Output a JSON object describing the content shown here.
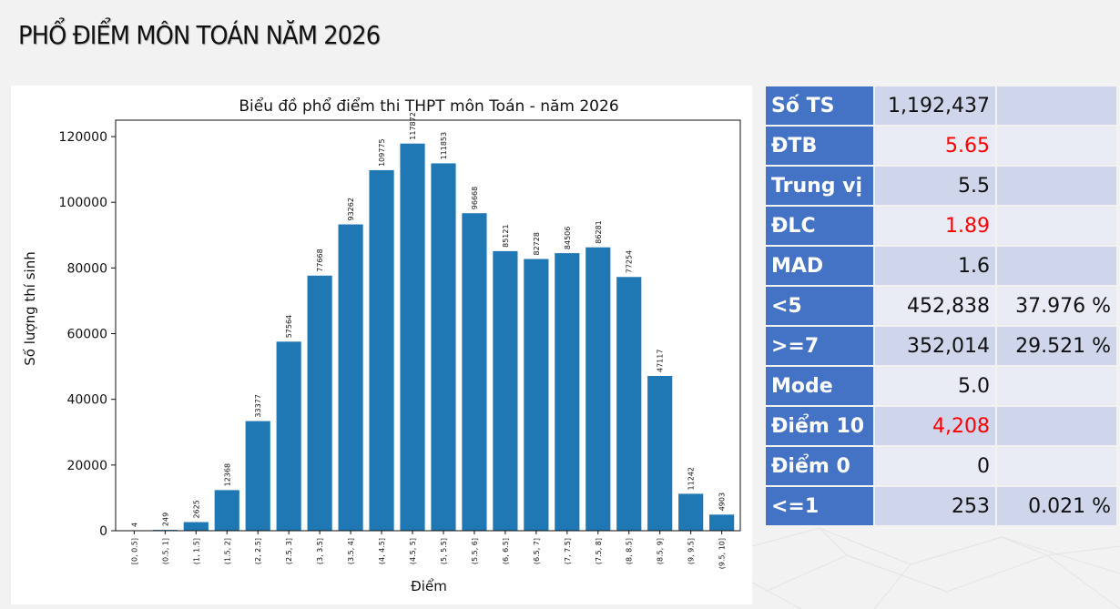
{
  "page": {
    "title": "PHỔ ĐIỂM MÔN TOÁN NĂM 2026"
  },
  "colors": {
    "bar": "#1f77b4",
    "table_header": "#4472c4",
    "row_dark": "#cfd5ea",
    "row_light": "#e9ebf5",
    "highlight": "#ff0000"
  },
  "chart_data": {
    "type": "bar",
    "title": "Biểu đồ phổ điểm thi THPT môn Toán - năm 2026",
    "xlabel": "Điểm",
    "ylabel": "Số lượng thí sinh",
    "ylim": [
      0,
      125000
    ],
    "yticks": [
      0,
      20000,
      40000,
      60000,
      80000,
      100000,
      120000
    ],
    "grid": false,
    "categories": [
      "[0, 0.5]",
      "(0.5, 1]",
      "(1, 1.5]",
      "(1.5, 2]",
      "(2, 2.5]",
      "(2.5, 3]",
      "(3, 3.5]",
      "(3.5, 4]",
      "(4, 4.5]",
      "(4.5, 5]",
      "(5, 5.5]",
      "(5.5, 6]",
      "(6, 6.5]",
      "(6.5, 7]",
      "(7, 7.5]",
      "(7.5, 8]",
      "(8, 8.5]",
      "(8.5, 9]",
      "(9, 9.5]",
      "(9.5, 10]"
    ],
    "values": [
      4,
      249,
      2625,
      12368,
      33377,
      57564,
      77668,
      93262,
      109775,
      117872,
      111853,
      96668,
      85121,
      82728,
      84506,
      86281,
      77254,
      47117,
      11242,
      4903
    ],
    "data_labels": [
      "4",
      "249",
      "2625",
      "12368",
      "33377",
      "57564",
      "77668",
      "93262",
      "109775",
      "117872",
      "111853",
      "96668",
      "85121",
      "82728",
      "84506",
      "86281",
      "77254",
      "47117",
      "11242",
      "4903"
    ]
  },
  "stats": [
    {
      "label": "Số TS",
      "value": "1,192,437",
      "pct": "",
      "red": false
    },
    {
      "label": "ĐTB",
      "value": "5.65",
      "pct": "",
      "red": true
    },
    {
      "label": "Trung vị",
      "value": "5.5",
      "pct": "",
      "red": false
    },
    {
      "label": "ĐLC",
      "value": "1.89",
      "pct": "",
      "red": true
    },
    {
      "label": "MAD",
      "value": "1.6",
      "pct": "",
      "red": false
    },
    {
      "label": "<5",
      "value": "452,838",
      "pct": "37.976 %",
      "red": false
    },
    {
      "label": ">=7",
      "value": "352,014",
      "pct": "29.521 %",
      "red": false
    },
    {
      "label": "Mode",
      "value": "5.0",
      "pct": "",
      "red": false
    },
    {
      "label": "Điểm 10",
      "value": "4,208",
      "pct": "",
      "red": true
    },
    {
      "label": "Điểm 0",
      "value": "0",
      "pct": "",
      "red": false
    },
    {
      "label": "<=1",
      "value": "253",
      "pct": "0.021 %",
      "red": false
    }
  ]
}
